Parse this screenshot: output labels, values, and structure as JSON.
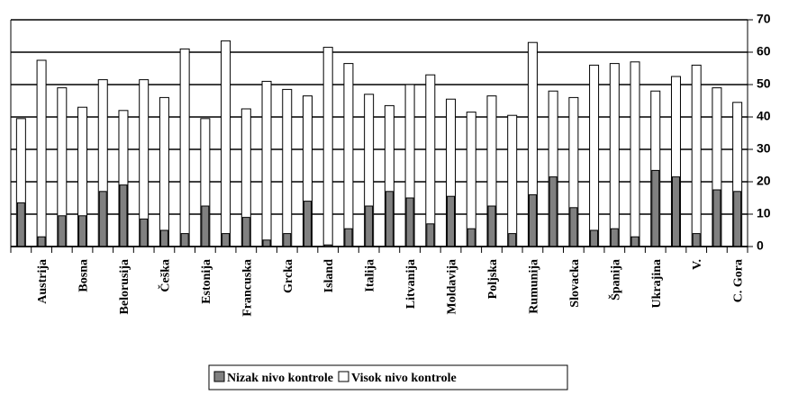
{
  "chart_data": {
    "type": "bar",
    "categories": [
      null,
      "Austrija",
      null,
      "Bosna",
      null,
      "Belorusija",
      null,
      "Češka",
      null,
      "Estonija",
      null,
      "Francuska",
      null,
      "Grcka",
      null,
      "Island",
      null,
      "Italija",
      null,
      "Litvanija",
      null,
      "Moldavija",
      null,
      "Poljska",
      null,
      "Rumunija",
      null,
      "Slovacka",
      null,
      "Španija",
      null,
      "Ukrajina",
      null,
      "V.",
      null,
      "C. Gora"
    ],
    "series": [
      {
        "name": "Nizak nivo kontrole",
        "color": "#808080",
        "values": [
          13.5,
          3,
          9.5,
          9.5,
          17,
          19,
          8.5,
          5,
          4,
          12.5,
          4,
          9,
          2,
          4,
          14,
          0.5,
          5.5,
          12.5,
          17,
          15,
          7,
          15.5,
          5.5,
          12.5,
          4,
          16,
          21.5,
          12,
          5,
          5.5,
          3,
          23.5,
          21.5,
          4,
          17.5,
          17
        ]
      },
      {
        "name": "Visok nivo kontrole",
        "color": "#ffffff",
        "values": [
          39.5,
          57.5,
          49,
          43,
          51.5,
          42,
          51.5,
          46,
          61,
          39.5,
          63.5,
          42.5,
          51,
          48.5,
          46.5,
          61.5,
          56.5,
          47,
          43.5,
          50,
          53,
          45.5,
          41.5,
          46.5,
          40.5,
          63,
          48,
          46,
          56,
          56.5,
          57,
          48,
          52.5,
          56,
          49,
          44.5
        ]
      }
    ],
    "ylim": [
      0,
      70
    ],
    "yticks": [
      0,
      10,
      20,
      30,
      40,
      50,
      60,
      70
    ],
    "grid": true,
    "legend": "bottom"
  }
}
